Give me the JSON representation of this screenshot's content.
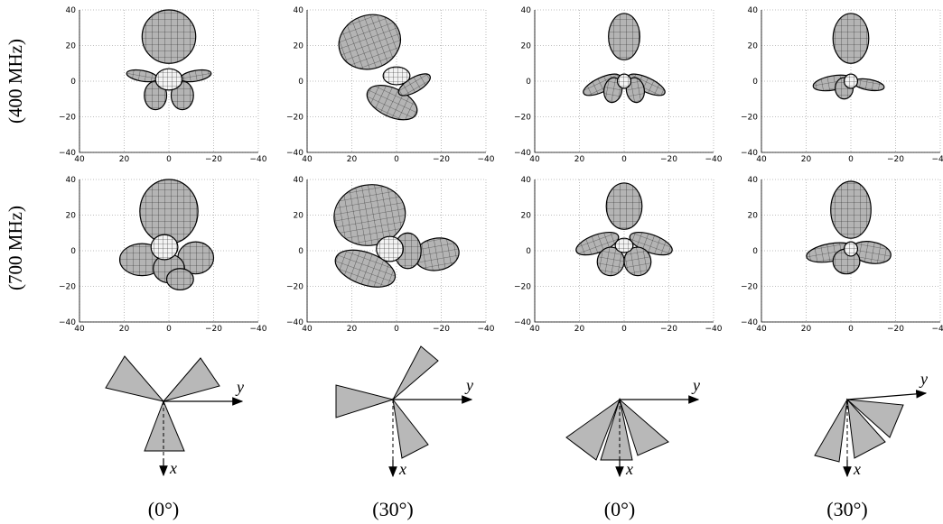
{
  "row_labels": [
    "(400 MHz)",
    "(700 MHz)"
  ],
  "axes": {
    "xlim": [
      40,
      -40
    ],
    "ylim": [
      -40,
      40
    ],
    "xticks": [
      40,
      20,
      0,
      {
        "value": -20,
        "label": "−20"
      },
      {
        "value": -40,
        "label": "−40"
      }
    ],
    "yticks": [
      {
        "value": -40,
        "label": "−40"
      },
      {
        "value": -20,
        "label": "−20"
      },
      0,
      20,
      40
    ]
  },
  "diagrams": [
    {
      "y_label": "y",
      "x_label": "x",
      "caption": "(0°)"
    },
    {
      "y_label": "y",
      "x_label": "x",
      "caption": "(30°)"
    },
    {
      "y_label": "y",
      "x_label": "x",
      "caption": "(0°)"
    },
    {
      "y_label": "y",
      "x_label": "x",
      "caption": "(30°)"
    }
  ]
}
